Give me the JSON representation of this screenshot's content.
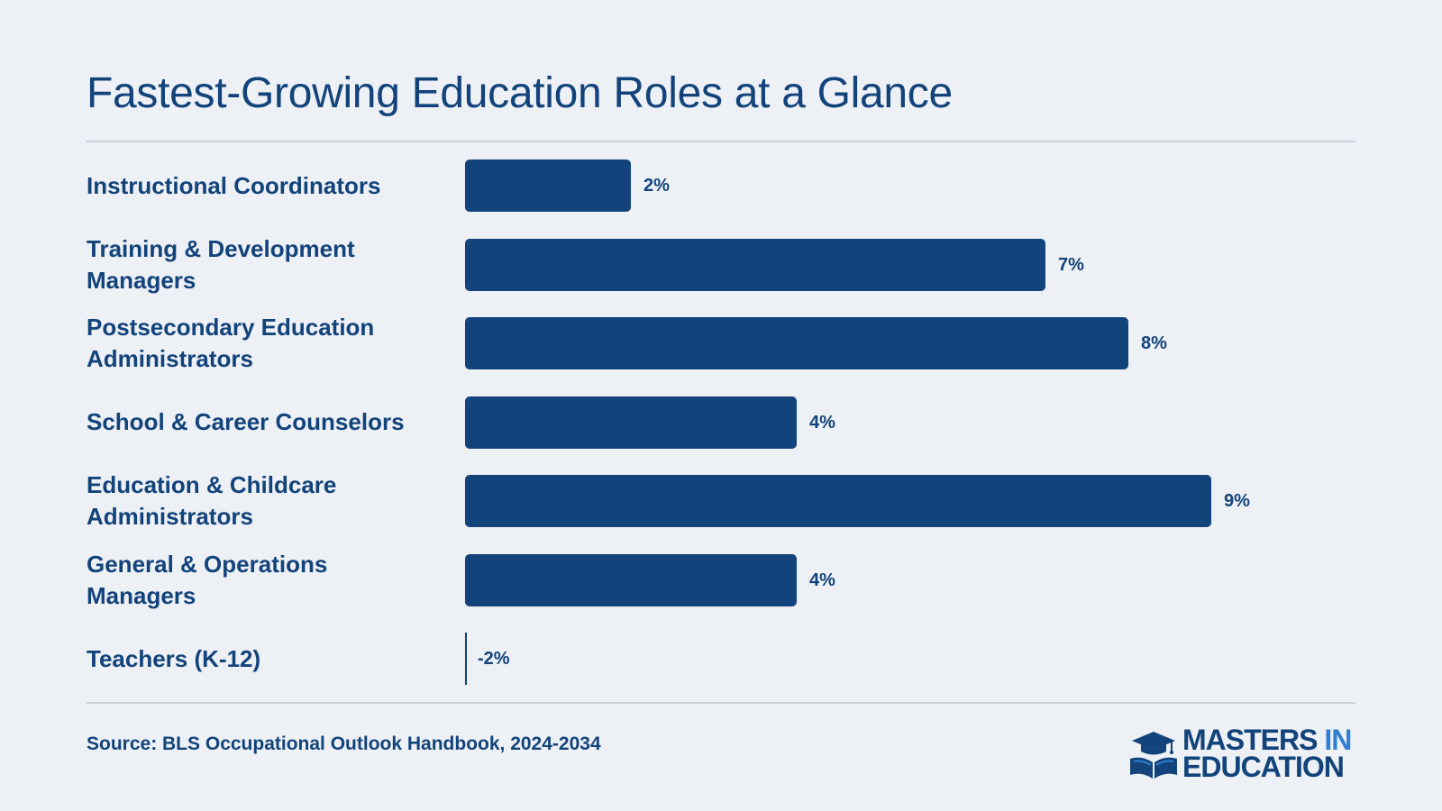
{
  "title": "Fastest-Growing Education Roles at a Glance",
  "source": "Source: BLS Occupational Outlook Handbook, 2024-2034",
  "logo": {
    "line1": "MASTERS",
    "line1_accent": "IN",
    "line2": "EDUCATION",
    "icon": "graduation-cap-book-icon"
  },
  "colors": {
    "background": "#edf0f5",
    "bar": "#12437a",
    "text": "#12437a",
    "accent": "#2f7fd0",
    "rule": "#c8cfd9"
  },
  "chart_data": {
    "type": "bar",
    "orientation": "horizontal",
    "title": "Fastest-Growing Education Roles at a Glance",
    "categories": [
      [
        "Instructional Coordinators"
      ],
      [
        "Training & Development",
        "Managers"
      ],
      [
        "Postsecondary Education",
        "Administrators"
      ],
      [
        "School & Career Counselors"
      ],
      [
        "Education & Childcare",
        "Administrators"
      ],
      [
        "General & Operations",
        "Managers"
      ],
      [
        "Teachers (K-12)"
      ]
    ],
    "values": [
      2,
      7,
      8,
      4,
      9,
      4,
      -2
    ],
    "value_labels": [
      "2%",
      "7%",
      "8%",
      "4%",
      "9%",
      "4%",
      "-2%"
    ],
    "xlim": [
      0,
      9
    ],
    "grid": false,
    "legend": "none"
  }
}
